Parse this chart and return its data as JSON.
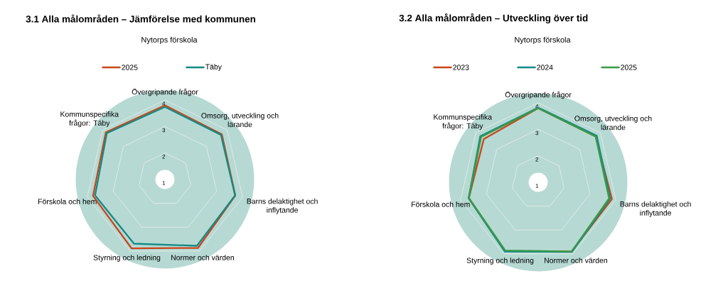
{
  "chart_data": [
    {
      "type": "radar",
      "title": "3.1 Alla målområden – Jämförelse med kommunen",
      "subtitle": "Nytorps förskola",
      "categories": [
        "Övergripande frågor",
        "Omsorg, utveckling och lärande",
        "Barns delaktighet och inflytande",
        "Normer och värden",
        "Styrning och ledning",
        "Förskola och hem",
        "Kommunspecifika frågor: Täby"
      ],
      "series": [
        {
          "name": "2025",
          "color": "#c9461a",
          "values": [
            3.8,
            3.74,
            3.72,
            3.87,
            3.89,
            3.78,
            3.85
          ]
        },
        {
          "name": "Täby",
          "color": "#138a86",
          "values": [
            3.74,
            3.7,
            3.71,
            3.78,
            3.69,
            3.7,
            3.8
          ]
        }
      ],
      "ylim": [
        1,
        4
      ],
      "yticks": [
        1,
        2,
        3,
        4
      ],
      "grid": true,
      "legend": "top"
    },
    {
      "type": "radar",
      "title": "3.2 Alla målområden – Utveckling över tid",
      "subtitle": "Nytorps förskola",
      "categories": [
        "Övergripande frågor",
        "Omsorg, utveckling och lärande",
        "Barns delaktighet och inflytande",
        "Normer och värden",
        "Styrning och ledning",
        "Förskola och hem",
        "Kommunspecifika frågor: Täby"
      ],
      "series": [
        {
          "name": "2023",
          "color": "#c9461a",
          "values": [
            3.8,
            3.77,
            3.85,
            3.9,
            3.88,
            3.68,
            3.62
          ]
        },
        {
          "name": "2024",
          "color": "#138a86",
          "values": [
            3.82,
            3.82,
            3.78,
            3.92,
            3.9,
            3.69,
            3.79
          ]
        },
        {
          "name": "2025",
          "color": "#3a9a48",
          "values": [
            3.8,
            3.77,
            3.74,
            3.9,
            3.86,
            3.68,
            3.75
          ]
        }
      ],
      "ylim": [
        1,
        4
      ],
      "yticks": [
        1,
        2,
        3,
        4
      ],
      "grid": true,
      "legend": "top"
    }
  ]
}
